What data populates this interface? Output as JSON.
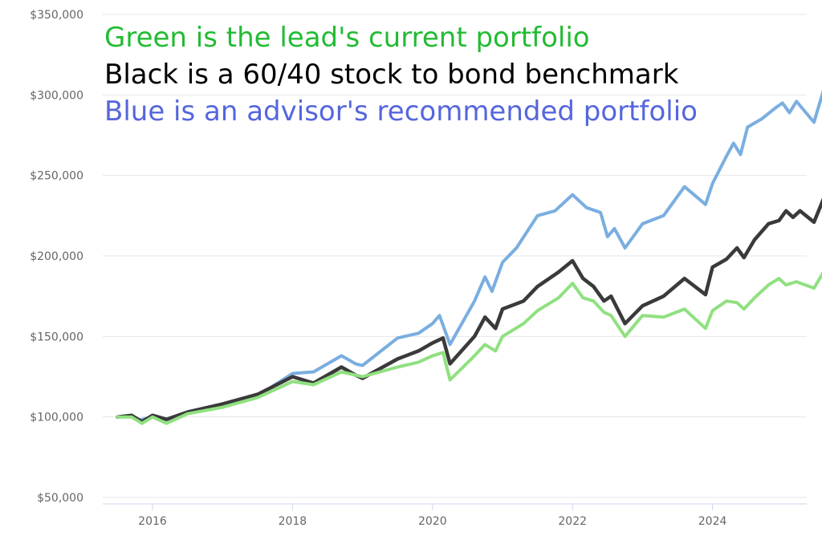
{
  "chart_data": {
    "type": "line",
    "title": "",
    "xlabel": "",
    "ylabel": "",
    "x_ticks": [
      "2016",
      "2018",
      "2020",
      "2022",
      "2024"
    ],
    "y_ticks": [
      "$50,000",
      "$100,000",
      "$150,000",
      "$200,000",
      "$250,000",
      "$300,000",
      "$350,000"
    ],
    "x_range": [
      2015.5,
      2025.6
    ],
    "ylim": [
      50000,
      350000
    ],
    "grid": "horizontal",
    "annotations": [
      {
        "text": "Green is the lead's current portfolio",
        "color": "#22bb33"
      },
      {
        "text": "Black is a 60/40 stock to bond benchmark",
        "color": "#000000"
      },
      {
        "text": "Blue is an advisor's recommended portfolio",
        "color": "#5566dd"
      }
    ],
    "series": [
      {
        "color": "#7ccfe6",
        "line_color": "#7aaee0",
        "points": [
          [
            2015.5,
            100000
          ],
          [
            2015.7,
            101000
          ],
          [
            2015.8,
            98000
          ],
          [
            2016.0,
            100000
          ],
          [
            2016.2,
            98500
          ],
          [
            2016.5,
            103000
          ],
          [
            2017.0,
            107000
          ],
          [
            2017.5,
            113000
          ],
          [
            2018.0,
            127000
          ],
          [
            2018.3,
            128000
          ],
          [
            2018.7,
            138000
          ],
          [
            2018.9,
            133000
          ],
          [
            2019.0,
            132000
          ],
          [
            2019.5,
            149000
          ],
          [
            2019.8,
            152000
          ],
          [
            2020.0,
            158000
          ],
          [
            2020.1,
            163000
          ],
          [
            2020.25,
            145000
          ],
          [
            2020.6,
            172000
          ],
          [
            2020.75,
            187000
          ],
          [
            2020.85,
            178000
          ],
          [
            2021.0,
            196000
          ],
          [
            2021.2,
            205000
          ],
          [
            2021.5,
            225000
          ],
          [
            2021.75,
            228000
          ],
          [
            2022.0,
            238000
          ],
          [
            2022.2,
            230000
          ],
          [
            2022.4,
            227000
          ],
          [
            2022.5,
            212000
          ],
          [
            2022.6,
            217000
          ],
          [
            2022.75,
            205000
          ],
          [
            2023.0,
            220000
          ],
          [
            2023.3,
            225000
          ],
          [
            2023.6,
            243000
          ],
          [
            2023.9,
            232000
          ],
          [
            2024.0,
            245000
          ],
          [
            2024.2,
            262000
          ],
          [
            2024.3,
            270000
          ],
          [
            2024.4,
            263000
          ],
          [
            2024.5,
            280000
          ],
          [
            2024.7,
            285000
          ],
          [
            2024.9,
            292000
          ],
          [
            2025.0,
            295000
          ],
          [
            2025.1,
            289000
          ],
          [
            2025.2,
            296000
          ],
          [
            2025.45,
            283000
          ],
          [
            2025.6,
            305000
          ]
        ]
      },
      {
        "color": "#333333",
        "line_color": "#3a3a3a",
        "points": [
          [
            2015.5,
            100000
          ],
          [
            2015.7,
            101000
          ],
          [
            2015.85,
            97000
          ],
          [
            2016.0,
            101000
          ],
          [
            2016.2,
            98500
          ],
          [
            2016.5,
            103000
          ],
          [
            2017.0,
            108000
          ],
          [
            2017.5,
            114000
          ],
          [
            2018.0,
            125000
          ],
          [
            2018.3,
            121000
          ],
          [
            2018.7,
            131000
          ],
          [
            2018.9,
            126000
          ],
          [
            2019.0,
            124000
          ],
          [
            2019.5,
            136000
          ],
          [
            2019.8,
            141000
          ],
          [
            2020.0,
            146000
          ],
          [
            2020.15,
            149000
          ],
          [
            2020.25,
            133000
          ],
          [
            2020.6,
            150000
          ],
          [
            2020.75,
            162000
          ],
          [
            2020.9,
            155000
          ],
          [
            2021.0,
            167000
          ],
          [
            2021.3,
            172000
          ],
          [
            2021.5,
            181000
          ],
          [
            2021.8,
            190000
          ],
          [
            2022.0,
            197000
          ],
          [
            2022.15,
            186000
          ],
          [
            2022.3,
            181000
          ],
          [
            2022.45,
            172000
          ],
          [
            2022.55,
            175000
          ],
          [
            2022.75,
            158000
          ],
          [
            2023.0,
            169000
          ],
          [
            2023.3,
            175000
          ],
          [
            2023.6,
            186000
          ],
          [
            2023.9,
            176000
          ],
          [
            2024.0,
            193000
          ],
          [
            2024.2,
            198000
          ],
          [
            2024.35,
            205000
          ],
          [
            2024.45,
            199000
          ],
          [
            2024.6,
            210000
          ],
          [
            2024.8,
            220000
          ],
          [
            2024.95,
            222000
          ],
          [
            2025.05,
            228000
          ],
          [
            2025.15,
            224000
          ],
          [
            2025.25,
            228000
          ],
          [
            2025.45,
            221000
          ],
          [
            2025.6,
            237000
          ]
        ]
      },
      {
        "color": "#8ee08a",
        "line_color": "#90e080",
        "points": [
          [
            2015.5,
            100000
          ],
          [
            2015.7,
            100000
          ],
          [
            2015.85,
            96000
          ],
          [
            2016.0,
            100000
          ],
          [
            2016.2,
            96000
          ],
          [
            2016.5,
            102000
          ],
          [
            2017.0,
            106000
          ],
          [
            2017.5,
            112000
          ],
          [
            2018.0,
            122000
          ],
          [
            2018.3,
            120000
          ],
          [
            2018.7,
            128000
          ],
          [
            2018.9,
            126000
          ],
          [
            2019.0,
            125000
          ],
          [
            2019.5,
            131000
          ],
          [
            2019.8,
            134000
          ],
          [
            2020.0,
            138000
          ],
          [
            2020.15,
            140000
          ],
          [
            2020.25,
            123000
          ],
          [
            2020.6,
            138000
          ],
          [
            2020.75,
            145000
          ],
          [
            2020.9,
            141000
          ],
          [
            2021.0,
            150000
          ],
          [
            2021.3,
            158000
          ],
          [
            2021.5,
            166000
          ],
          [
            2021.8,
            174000
          ],
          [
            2022.0,
            183000
          ],
          [
            2022.15,
            174000
          ],
          [
            2022.3,
            172000
          ],
          [
            2022.45,
            165000
          ],
          [
            2022.55,
            163000
          ],
          [
            2022.75,
            150000
          ],
          [
            2023.0,
            163000
          ],
          [
            2023.3,
            162000
          ],
          [
            2023.6,
            167000
          ],
          [
            2023.9,
            155000
          ],
          [
            2024.0,
            166000
          ],
          [
            2024.2,
            172000
          ],
          [
            2024.35,
            171000
          ],
          [
            2024.45,
            167000
          ],
          [
            2024.6,
            174000
          ],
          [
            2024.8,
            182000
          ],
          [
            2024.95,
            186000
          ],
          [
            2025.05,
            182000
          ],
          [
            2025.2,
            184000
          ],
          [
            2025.45,
            180000
          ],
          [
            2025.6,
            191000
          ]
        ]
      }
    ]
  }
}
